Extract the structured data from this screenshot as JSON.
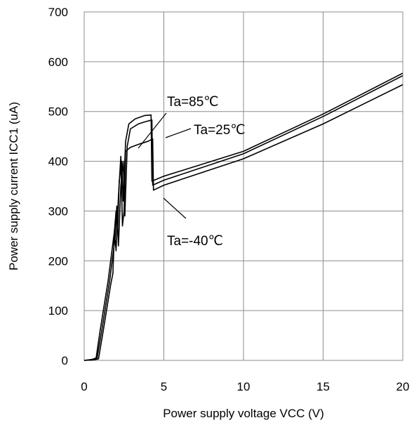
{
  "chart_data": {
    "type": "line",
    "xlabel": "Power supply voltage VCC (V)",
    "ylabel": "Power supply current ICC1 (uA)",
    "xlim": [
      0,
      20
    ],
    "ylim": [
      0,
      700
    ],
    "xticks": [
      0,
      5,
      10,
      15,
      20
    ],
    "yticks": [
      0,
      100,
      200,
      300,
      400,
      500,
      600,
      700
    ],
    "grid": true,
    "series": [
      {
        "name": "Ta=85℃",
        "points": [
          [
            0,
            0
          ],
          [
            0.5,
            2
          ],
          [
            0.75,
            5
          ],
          [
            1.0,
            60
          ],
          [
            1.5,
            160
          ],
          [
            1.9,
            260
          ],
          [
            2.0,
            300
          ],
          [
            2.1,
            260
          ],
          [
            2.2,
            360
          ],
          [
            2.35,
            400
          ],
          [
            2.45,
            320
          ],
          [
            2.6,
            440
          ],
          [
            2.8,
            475
          ],
          [
            3.2,
            485
          ],
          [
            3.8,
            492
          ],
          [
            4.2,
            493
          ],
          [
            4.25,
            360
          ],
          [
            5,
            370
          ],
          [
            10,
            420
          ],
          [
            15,
            495
          ],
          [
            20,
            577
          ]
        ]
      },
      {
        "name": "Ta=25℃",
        "points": [
          [
            0,
            0
          ],
          [
            0.5,
            1
          ],
          [
            0.8,
            3
          ],
          [
            1.1,
            60
          ],
          [
            1.6,
            160
          ],
          [
            1.95,
            250
          ],
          [
            2.05,
            310
          ],
          [
            2.15,
            230
          ],
          [
            2.3,
            350
          ],
          [
            2.45,
            400
          ],
          [
            2.55,
            290
          ],
          [
            2.7,
            430
          ],
          [
            2.9,
            465
          ],
          [
            3.4,
            475
          ],
          [
            3.9,
            480
          ],
          [
            4.25,
            483
          ],
          [
            4.3,
            352
          ],
          [
            5,
            362
          ],
          [
            10,
            415
          ],
          [
            15,
            490
          ],
          [
            20,
            572
          ]
        ]
      },
      {
        "name": "Ta=-40℃",
        "points": [
          [
            0,
            0
          ],
          [
            0.6,
            1
          ],
          [
            0.9,
            3
          ],
          [
            1.2,
            60
          ],
          [
            1.65,
            150
          ],
          [
            1.8,
            175
          ],
          [
            1.9,
            260
          ],
          [
            2.0,
            220
          ],
          [
            2.15,
            330
          ],
          [
            2.3,
            410
          ],
          [
            2.4,
            270
          ],
          [
            2.5,
            300
          ],
          [
            2.6,
            420
          ],
          [
            2.9,
            428
          ],
          [
            3.5,
            435
          ],
          [
            4.0,
            440
          ],
          [
            4.3,
            445
          ],
          [
            4.35,
            342
          ],
          [
            5,
            352
          ],
          [
            10,
            405
          ],
          [
            15,
            475
          ],
          [
            20,
            554
          ]
        ]
      }
    ],
    "annotations": [
      {
        "text": "Ta=85℃"
      },
      {
        "text": "Ta=25℃"
      },
      {
        "text": "Ta=-40℃"
      }
    ]
  }
}
